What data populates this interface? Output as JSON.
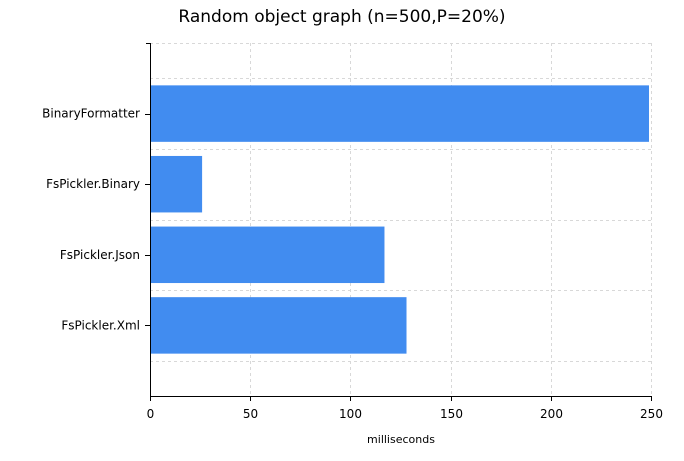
{
  "chart_data": {
    "type": "bar",
    "orientation": "horizontal",
    "title": "Random object graph (n=500,P=20%)",
    "xlabel": "milliseconds",
    "ylabel": "",
    "categories": [
      "BinaryFormatter",
      "FsPickler.Binary",
      "FsPickler.Json",
      "FsPickler.Xml"
    ],
    "values": [
      249,
      26,
      117,
      128
    ],
    "xlim": [
      0,
      250
    ],
    "xticks": [
      "0",
      "50",
      "100",
      "150",
      "200",
      "250"
    ],
    "grid": true,
    "bar_color": "#418CF0",
    "grid_color": "#d8d8d8"
  }
}
